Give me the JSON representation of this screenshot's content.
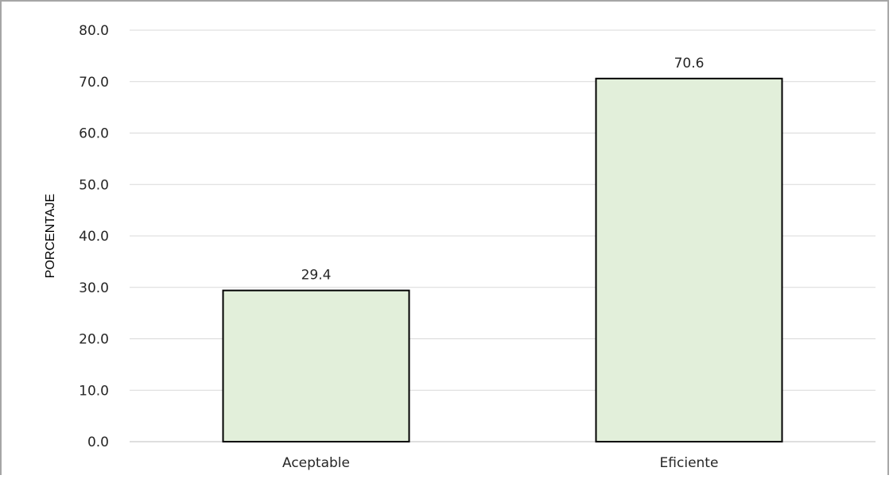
{
  "chart_data": {
    "type": "bar",
    "title": "",
    "xlabel": "",
    "ylabel": "PORCENTAJE",
    "categories": [
      "Aceptable",
      "Eficiente"
    ],
    "values": [
      29.4,
      70.6
    ],
    "data_labels": [
      "29.4",
      "70.6"
    ],
    "ylim": [
      0,
      80
    ],
    "yticks": [
      0,
      10,
      20,
      30,
      40,
      50,
      60,
      70,
      80
    ],
    "ytick_labels": [
      "0.0",
      "10.0",
      "20.0",
      "30.0",
      "40.0",
      "50.0",
      "60.0",
      "70.0",
      "80.0"
    ],
    "grid": true,
    "legend": "none",
    "colors": {
      "bar_fill": "#e2efda",
      "bar_stroke": "#000000",
      "grid": "#d9d9d9"
    }
  }
}
